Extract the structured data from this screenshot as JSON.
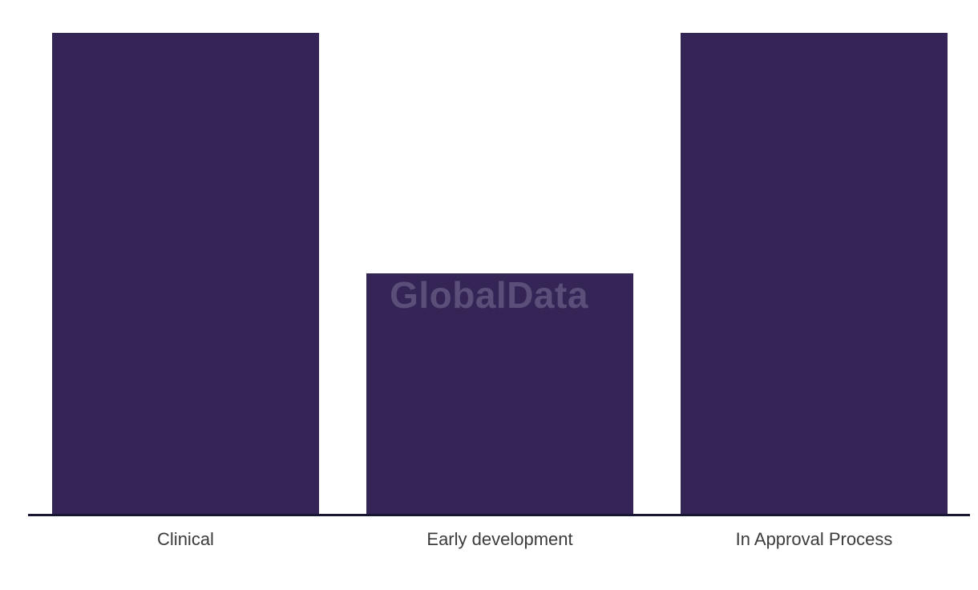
{
  "watermark": {
    "text": "GlobalData",
    "color": "#5b4e79"
  },
  "colors": {
    "bar": "#352556",
    "axis": "#181733",
    "label": "#3c3c3c",
    "background": "#ffffff"
  },
  "chart_data": {
    "type": "bar",
    "categories": [
      "Clinical",
      "Early development",
      "In Approval Process"
    ],
    "values": [
      2,
      1,
      2
    ],
    "title": "",
    "xlabel": "",
    "ylabel": "",
    "ylim": [
      0,
      2
    ],
    "grid": false,
    "legend": false,
    "bar_color": "#352556",
    "axis_line": "x-axis bottom only, no ticks, no y-axis"
  }
}
